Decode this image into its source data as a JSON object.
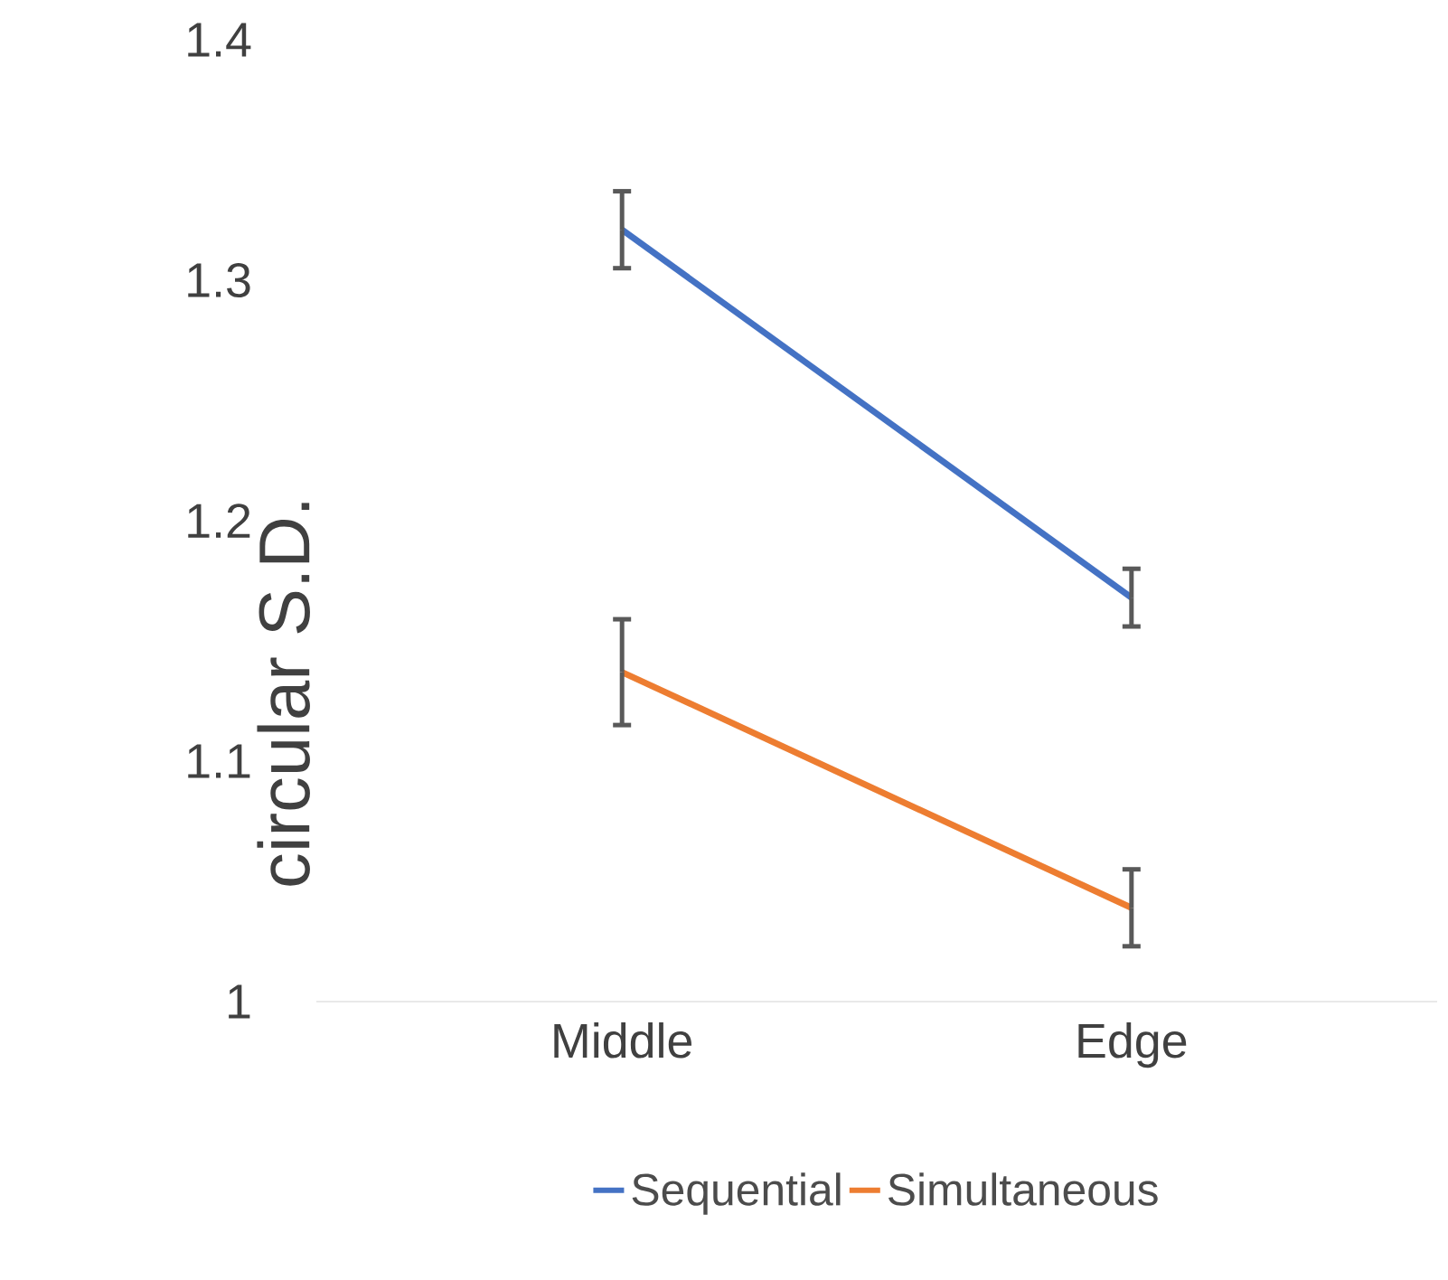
{
  "chart_data": {
    "type": "line",
    "ylabel": "circular S.D.",
    "categories": [
      "Middle",
      "Edge"
    ],
    "series": [
      {
        "name": "Sequential",
        "color": "#4472c4",
        "values": [
          1.321,
          1.168
        ],
        "errors": [
          0.016,
          0.012
        ]
      },
      {
        "name": "Simultaneous",
        "color": "#ed7d31",
        "values": [
          1.137,
          1.039
        ],
        "errors": [
          0.022,
          0.016
        ]
      }
    ],
    "ylim": [
      1,
      1.4
    ],
    "yticks": [
      1,
      1.1,
      1.2,
      1.3,
      1.4
    ],
    "legend": "bottom",
    "marker": "none",
    "line_style": "solid"
  }
}
